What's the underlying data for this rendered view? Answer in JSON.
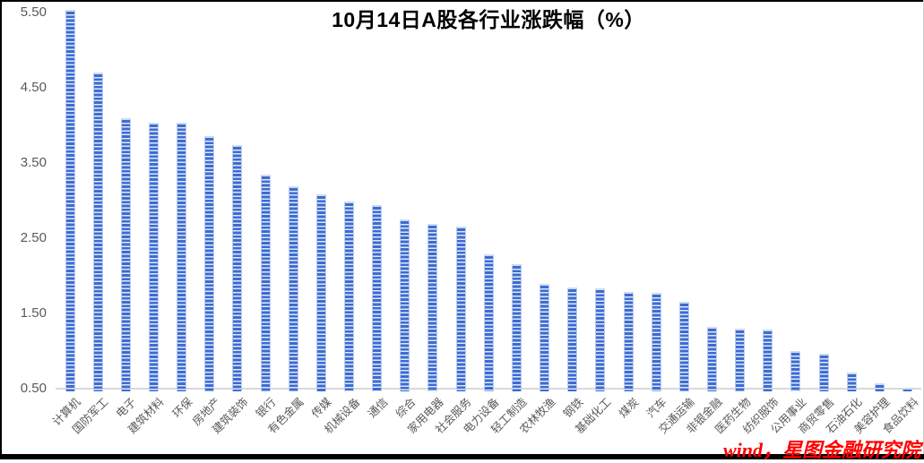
{
  "header": {
    "title": "10月14日A股各行业涨跌幅（%）"
  },
  "watermark": {
    "text": "wind，星图金融研究院",
    "color": "#FF0000"
  },
  "chart_data": {
    "type": "bar",
    "title": "10月14日A股各行业涨跌幅（%）",
    "categories": [
      "计算机",
      "国防军工",
      "电子",
      "建筑材料",
      "环保",
      "房地产",
      "建筑装饰",
      "银行",
      "有色金属",
      "传媒",
      "机械设备",
      "通信",
      "综合",
      "家用电器",
      "社会服务",
      "电力设备",
      "轻工制造",
      "农林牧渔",
      "钢铁",
      "基础化工",
      "煤炭",
      "汽车",
      "交通运输",
      "非银金融",
      "医药生物",
      "纺织服饰",
      "公用事业",
      "商贸零售",
      "石油石化",
      "美容护理",
      "食品饮料"
    ],
    "values": [
      5.53,
      4.7,
      4.09,
      4.04,
      4.03,
      3.86,
      3.74,
      3.35,
      3.19,
      3.08,
      2.99,
      2.94,
      2.75,
      2.69,
      2.66,
      2.28,
      2.15,
      1.89,
      1.85,
      1.83,
      1.79,
      1.77,
      1.65,
      1.32,
      1.3,
      1.29,
      1.0,
      0.97,
      0.71,
      0.57,
      0.51
    ],
    "xlabel": "",
    "ylabel": "",
    "ylim": [
      0.5,
      5.5
    ],
    "ytick_labels": [
      "0.50",
      "1.50",
      "2.50",
      "3.50",
      "4.50",
      "5.50"
    ],
    "grid": false,
    "legend": "none",
    "bar_fill_style": "horizontal-stripes",
    "colors": {
      "bar_stripe_dark": "#3E6BD2",
      "bar_stripe_light": "#DDE8F8",
      "bar_edge": "#BACDED",
      "bar_cap": "#CCDCF4",
      "axis_line": "#D9D9D9",
      "tick_label": "#595959",
      "title": "#000000"
    }
  }
}
